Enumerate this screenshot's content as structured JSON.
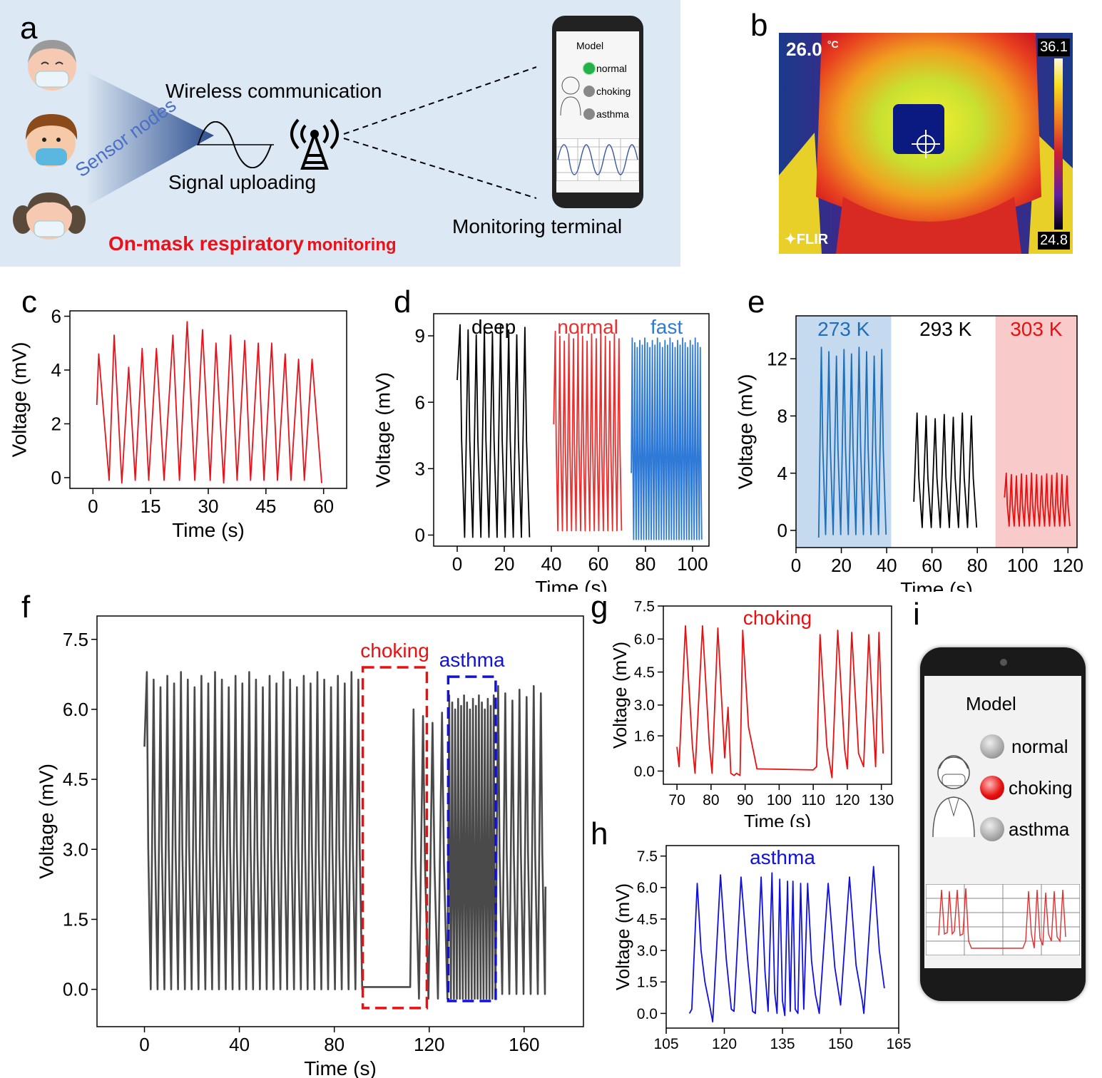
{
  "panel_letters": {
    "a": "a",
    "b": "b",
    "c": "c",
    "d": "d",
    "e": "e",
    "f": "f",
    "g": "g",
    "h": "h",
    "i": "i"
  },
  "panel_a": {
    "wireless": "Wireless communication",
    "signal": "Signal uploading",
    "sensor_nodes": "Sensor nodes",
    "monitoring_terminal": "Monitoring terminal",
    "title_part1": "On-mask respiratory",
    "title_part2": "monitoring",
    "phone": {
      "title": "Model",
      "options": [
        "normal",
        "choking",
        "asthma"
      ],
      "active": "normal"
    },
    "colors": {
      "title": "#e8121a",
      "sensor_nodes": "#4a6fc4",
      "active_dot": "#22b14c"
    }
  },
  "panel_b": {
    "temp_readout": "26.0",
    "temp_unit": "°C",
    "scale_max": "36.1",
    "scale_min": "24.8",
    "brand": "FLIR"
  },
  "panel_i": {
    "title": "Model",
    "options": [
      "normal",
      "choking",
      "asthma"
    ],
    "active": "choking",
    "colors": {
      "active_dot": "#e81010",
      "wave": "#e03030"
    }
  },
  "chart_data": [
    {
      "id": "c",
      "type": "line",
      "xlabel": "Time (s)",
      "ylabel": "Voltage (mV)",
      "xlim": [
        -6,
        66
      ],
      "ylim": [
        -0.4,
        6.2
      ],
      "xticks": [
        0,
        15,
        30,
        45,
        60
      ],
      "yticks": [
        0,
        2,
        4,
        6
      ],
      "series": [
        {
          "color": "#e8121a",
          "peaks": [
            [
              1.5,
              4.6
            ],
            [
              5.5,
              5.3
            ],
            [
              9.3,
              4.1
            ],
            [
              12.8,
              4.8
            ],
            [
              16.5,
              4.8
            ],
            [
              20.8,
              5.3
            ],
            [
              24.5,
              5.8
            ],
            [
              28.5,
              5.5
            ],
            [
              32.0,
              5.0
            ],
            [
              35.8,
              5.3
            ],
            [
              39.5,
              5.1
            ],
            [
              43.0,
              5.0
            ],
            [
              46.5,
              5.0
            ],
            [
              50.0,
              4.6
            ],
            [
              53.5,
              4.4
            ],
            [
              57.0,
              4.4
            ]
          ],
          "troughs": [
            [
              1.0,
              2.7
            ],
            [
              4.2,
              -0.1
            ],
            [
              7.5,
              -0.2
            ],
            [
              11.0,
              -0.1
            ],
            [
              14.5,
              -0.1
            ],
            [
              18.5,
              -0.1
            ],
            [
              22.5,
              -0.1
            ],
            [
              26.5,
              -0.1
            ],
            [
              30.5,
              -0.1
            ],
            [
              34.0,
              -0.2
            ],
            [
              37.5,
              -0.1
            ],
            [
              41.0,
              -0.1
            ],
            [
              44.5,
              -0.1
            ],
            [
              48.0,
              -0.1
            ],
            [
              51.5,
              -0.1
            ],
            [
              55.0,
              -0.1
            ],
            [
              59.5,
              -0.2
            ]
          ]
        }
      ]
    },
    {
      "id": "d",
      "type": "line",
      "xlabel": "Time (s)",
      "ylabel": "Voltage (mV)",
      "xlim": [
        -10,
        107
      ],
      "ylim": [
        -0.5,
        10.0
      ],
      "xticks": [
        0,
        20,
        40,
        60,
        80,
        100
      ],
      "yticks": [
        0,
        3,
        6,
        9
      ],
      "series": [
        {
          "name": "deep",
          "color": "#000000",
          "x_start": 0,
          "x_end": 31,
          "count": 9,
          "peak": 9.5,
          "trough": -0.1,
          "start_value": 7.0
        },
        {
          "name": "normal",
          "color": "#e83030",
          "x_start": 41,
          "x_end": 70,
          "count": 15,
          "peak": 9.2,
          "trough": 0.2,
          "start_value": 5.0
        },
        {
          "name": "fast",
          "color": "#2e7ad6",
          "x_start": 74,
          "x_end": 104,
          "count": 28,
          "peak": 8.9,
          "trough": -0.2,
          "start_value": 2.8
        }
      ]
    },
    {
      "id": "e",
      "type": "line",
      "xlabel": "Time (s)",
      "ylabel": "Voltage (mV)",
      "xlim": [
        0,
        124
      ],
      "ylim": [
        -1.2,
        15.0
      ],
      "xticks": [
        0,
        20,
        40,
        60,
        80,
        100,
        120
      ],
      "yticks": [
        0,
        4,
        8,
        12
      ],
      "series": [
        {
          "name": "273 K",
          "color": "#1f6fb8",
          "band": [
            0,
            42
          ],
          "band_color": "#c5d9ef",
          "x_start": 10,
          "x_end": 40,
          "count": 9,
          "peak": 12.8,
          "trough": -0.3,
          "start_value": -0.5
        },
        {
          "name": "293 K",
          "color": "#000000",
          "band": null,
          "x_start": 52,
          "x_end": 80,
          "count": 7,
          "peak": 8.2,
          "trough": 0.2,
          "start_value": 2.0
        },
        {
          "name": "303 K",
          "color": "#e81010",
          "band": [
            88,
            124
          ],
          "band_color": "#f9caca",
          "x_start": 92,
          "x_end": 121,
          "count": 13,
          "peak": 4.0,
          "trough": 0.3,
          "start_value": 2.3
        }
      ]
    },
    {
      "id": "f",
      "type": "line",
      "xlabel": "Time (s)",
      "ylabel": "Voltage (mV)",
      "xlim": [
        -20,
        185
      ],
      "ylim": [
        -0.8,
        8.0
      ],
      "xticks": [
        0,
        40,
        80,
        120,
        160
      ],
      "yticks": [
        0.0,
        1.5,
        3.0,
        4.5,
        6.0,
        7.5
      ],
      "annotations": [
        {
          "text": "choking",
          "color": "#e81010",
          "x": [
            92,
            119
          ],
          "y": [
            -0.4,
            6.9
          ]
        },
        {
          "text": "asthma",
          "color": "#1010e0",
          "x": [
            128,
            148
          ],
          "y": [
            -0.25,
            6.7
          ]
        }
      ],
      "series": [
        {
          "color": "#4a4a4a",
          "segments": [
            {
              "x_start": 0,
              "x_end": 92,
              "count": 32,
              "peak": 6.8,
              "trough": 0.0,
              "start_value": 5.2
            },
            {
              "flat": true,
              "x_start": 92,
              "x_end": 112,
              "value": 0.05
            },
            {
              "x_start": 112,
              "x_end": 128,
              "count": 4,
              "peak": 6.0,
              "trough": -0.2
            },
            {
              "x_start": 128,
              "x_end": 148,
              "count": 16,
              "peak": 6.3,
              "trough": -0.2
            },
            {
              "x_start": 148,
              "x_end": 169,
              "count": 7,
              "peak": 6.5,
              "trough": -0.1,
              "end_value": 2.2
            }
          ]
        }
      ]
    },
    {
      "id": "g",
      "type": "line",
      "title": "choking",
      "title_color": "#e81010",
      "xlabel": "Time (s)",
      "ylabel": "Voltage (mV)",
      "xlim": [
        66,
        133
      ],
      "ylim": [
        -0.6,
        7.5
      ],
      "xticks": [
        70,
        80,
        90,
        100,
        110,
        120,
        130
      ],
      "yticks": [
        0.0,
        1.6,
        3.0,
        4.5,
        6.0,
        7.5
      ],
      "ytick_labels": [
        "0.0",
        "1.6",
        "3.0",
        "4.5",
        "6.0",
        "7.5"
      ],
      "series": [
        {
          "color": "#e81010",
          "points": [
            [
              70,
              1.1
            ],
            [
              70.6,
              0.2
            ],
            [
              72.5,
              6.6
            ],
            [
              74.5,
              1.2
            ],
            [
              75.3,
              -0.1
            ],
            [
              77.5,
              6.6
            ],
            [
              79.5,
              1.2
            ],
            [
              80.3,
              -0.1
            ],
            [
              82,
              6.5
            ],
            [
              84,
              0.6
            ],
            [
              85,
              2.9
            ],
            [
              85.8,
              -0.1
            ],
            [
              86.8,
              -0.2
            ],
            [
              87.5,
              -0.1
            ],
            [
              88.5,
              -0.2
            ],
            [
              89.3,
              6.4
            ],
            [
              91,
              2.0
            ],
            [
              93.5,
              0.1
            ],
            [
              110,
              0.05
            ],
            [
              111,
              0.2
            ],
            [
              112,
              6.2
            ],
            [
              114,
              1.1
            ],
            [
              115.5,
              -0.3
            ],
            [
              117.2,
              6.4
            ],
            [
              119.2,
              1.0
            ],
            [
              120,
              0.1
            ],
            [
              121.3,
              6.3
            ],
            [
              123.3,
              0.8
            ],
            [
              124.8,
              0.2
            ],
            [
              126.3,
              6.2
            ],
            [
              128.3,
              0.2
            ],
            [
              129.3,
              6.3
            ],
            [
              130.5,
              0.8
            ]
          ]
        }
      ]
    },
    {
      "id": "h",
      "type": "line",
      "title": "asthma",
      "title_color": "#1010e0",
      "xlabel": "",
      "ylabel": "Voltage (mV)",
      "xlim": [
        105,
        165
      ],
      "ylim": [
        -0.7,
        8.0
      ],
      "xticks": [
        105,
        120,
        135,
        150,
        165
      ],
      "yticks": [
        0.0,
        1.5,
        3.0,
        4.5,
        6.0,
        7.5
      ],
      "series": [
        {
          "color": "#1010e0",
          "points": [
            [
              111,
              0.0
            ],
            [
              111.6,
              0.2
            ],
            [
              113,
              6.2
            ],
            [
              114,
              3.0
            ],
            [
              115,
              1.5
            ],
            [
              116.3,
              0.3
            ],
            [
              117,
              -0.4
            ],
            [
              119,
              6.6
            ],
            [
              120.5,
              2.6
            ],
            [
              121.8,
              0.2
            ],
            [
              122.5,
              0.1
            ],
            [
              124.3,
              6.5
            ],
            [
              126,
              2.6
            ],
            [
              127.3,
              0.1
            ],
            [
              128,
              0.0
            ],
            [
              129.5,
              6.5
            ],
            [
              130.5,
              2.0
            ],
            [
              131.3,
              0.1
            ],
            [
              132.3,
              6.7
            ],
            [
              133,
              1.0
            ],
            [
              133.6,
              0.0
            ],
            [
              134.3,
              6.4
            ],
            [
              135,
              0.6
            ],
            [
              135.6,
              -0.1
            ],
            [
              136.3,
              6.3
            ],
            [
              137,
              0.1
            ],
            [
              137.7,
              6.3
            ],
            [
              138.3,
              0.2
            ],
            [
              139,
              0.0
            ],
            [
              139.7,
              6.2
            ],
            [
              140.5,
              0.2
            ],
            [
              141.5,
              6.2
            ],
            [
              142.5,
              2.5
            ],
            [
              143.5,
              0.9
            ],
            [
              144.5,
              0.0
            ],
            [
              146.8,
              6.2
            ],
            [
              148.5,
              2.2
            ],
            [
              150,
              0.4
            ],
            [
              152.3,
              6.5
            ],
            [
              154,
              2.3
            ],
            [
              155.6,
              0.6
            ],
            [
              156,
              0.0
            ],
            [
              158.5,
              7.0
            ],
            [
              160,
              3.0
            ],
            [
              161.3,
              1.2
            ]
          ]
        }
      ]
    }
  ]
}
